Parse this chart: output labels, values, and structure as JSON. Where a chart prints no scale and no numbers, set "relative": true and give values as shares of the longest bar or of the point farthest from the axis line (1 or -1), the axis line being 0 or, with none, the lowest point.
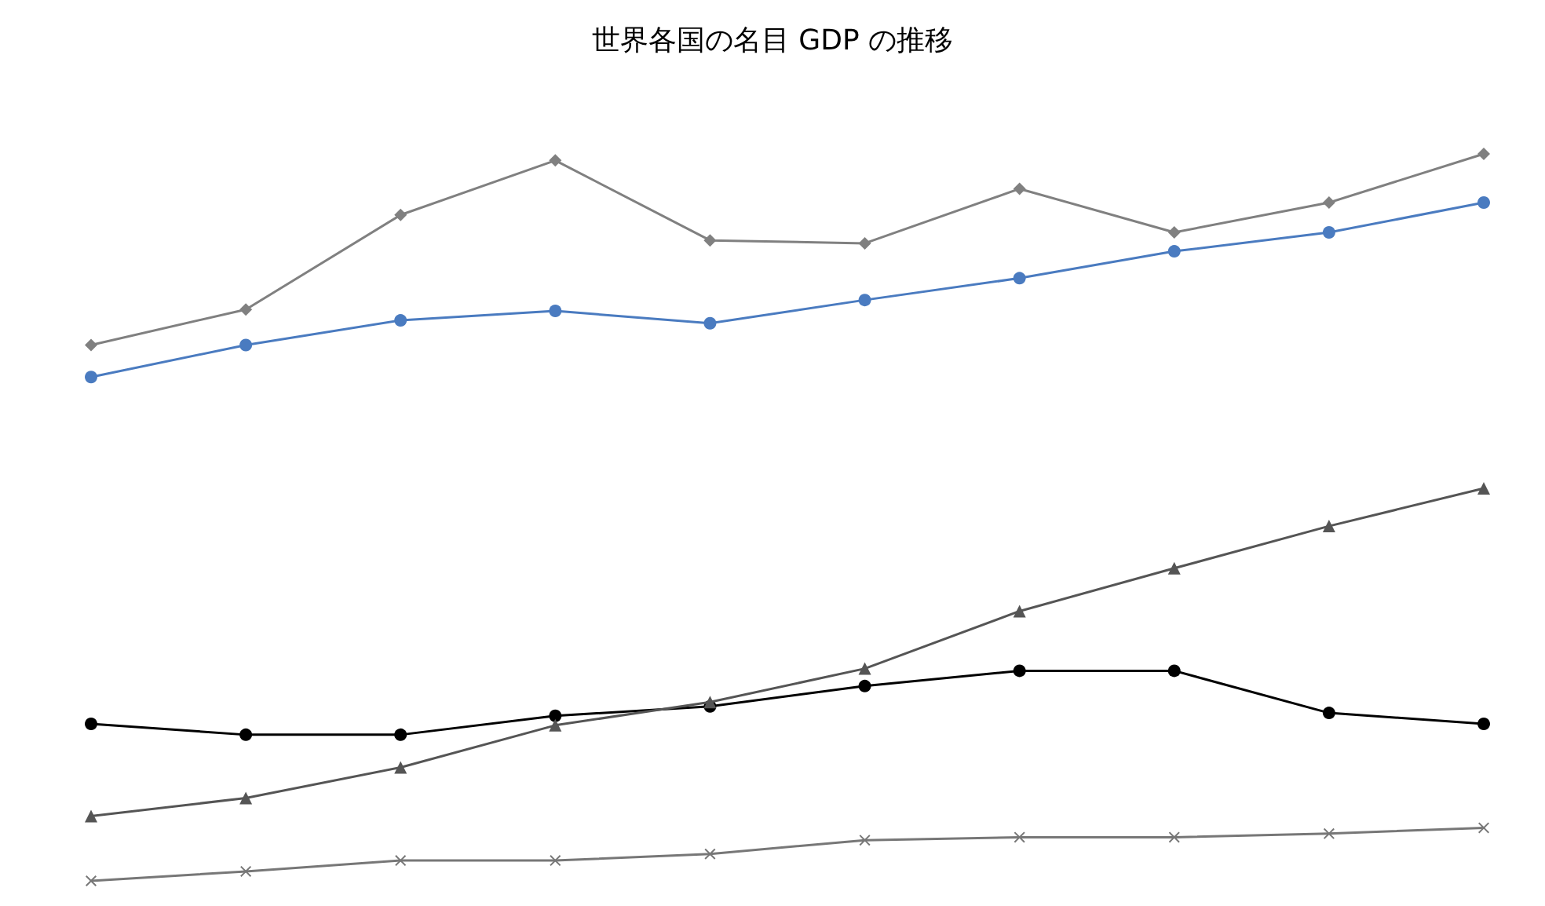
{
  "chart_data": {
    "type": "line",
    "title": "世界各国の名目 GDP の推移",
    "relative": true,
    "categories": [
      null,
      null,
      null,
      null,
      null,
      null,
      null,
      null,
      null,
      null
    ],
    "series": [
      {
        "color": "#808080",
        "marker": "diamond",
        "values": [
          0.737,
          0.786,
          0.916,
          0.991,
          0.881,
          0.877,
          0.952,
          0.892,
          0.933,
          1
        ]
      },
      {
        "color": "#4a7bc0",
        "marker": "circle",
        "values": [
          0.693,
          0.737,
          0.771,
          0.784,
          0.767,
          0.799,
          0.829,
          0.866,
          0.892,
          0.933
        ]
      },
      {
        "color": "#555555",
        "marker": "triangle",
        "values": [
          0.089,
          0.114,
          0.156,
          0.214,
          0.246,
          0.292,
          0.371,
          0.43,
          0.488,
          0.54
        ]
      },
      {
        "color": "#000000",
        "marker": "circle",
        "values": [
          0.216,
          0.201,
          0.201,
          0.227,
          0.24,
          0.268,
          0.289,
          0.289,
          0.231,
          0.216
        ]
      },
      {
        "color": "#777777",
        "marker": "cross",
        "values": [
          0,
          0.013,
          0.028,
          0.028,
          0.037,
          0.056,
          0.06,
          0.06,
          0.065,
          0.073
        ]
      }
    ]
  }
}
